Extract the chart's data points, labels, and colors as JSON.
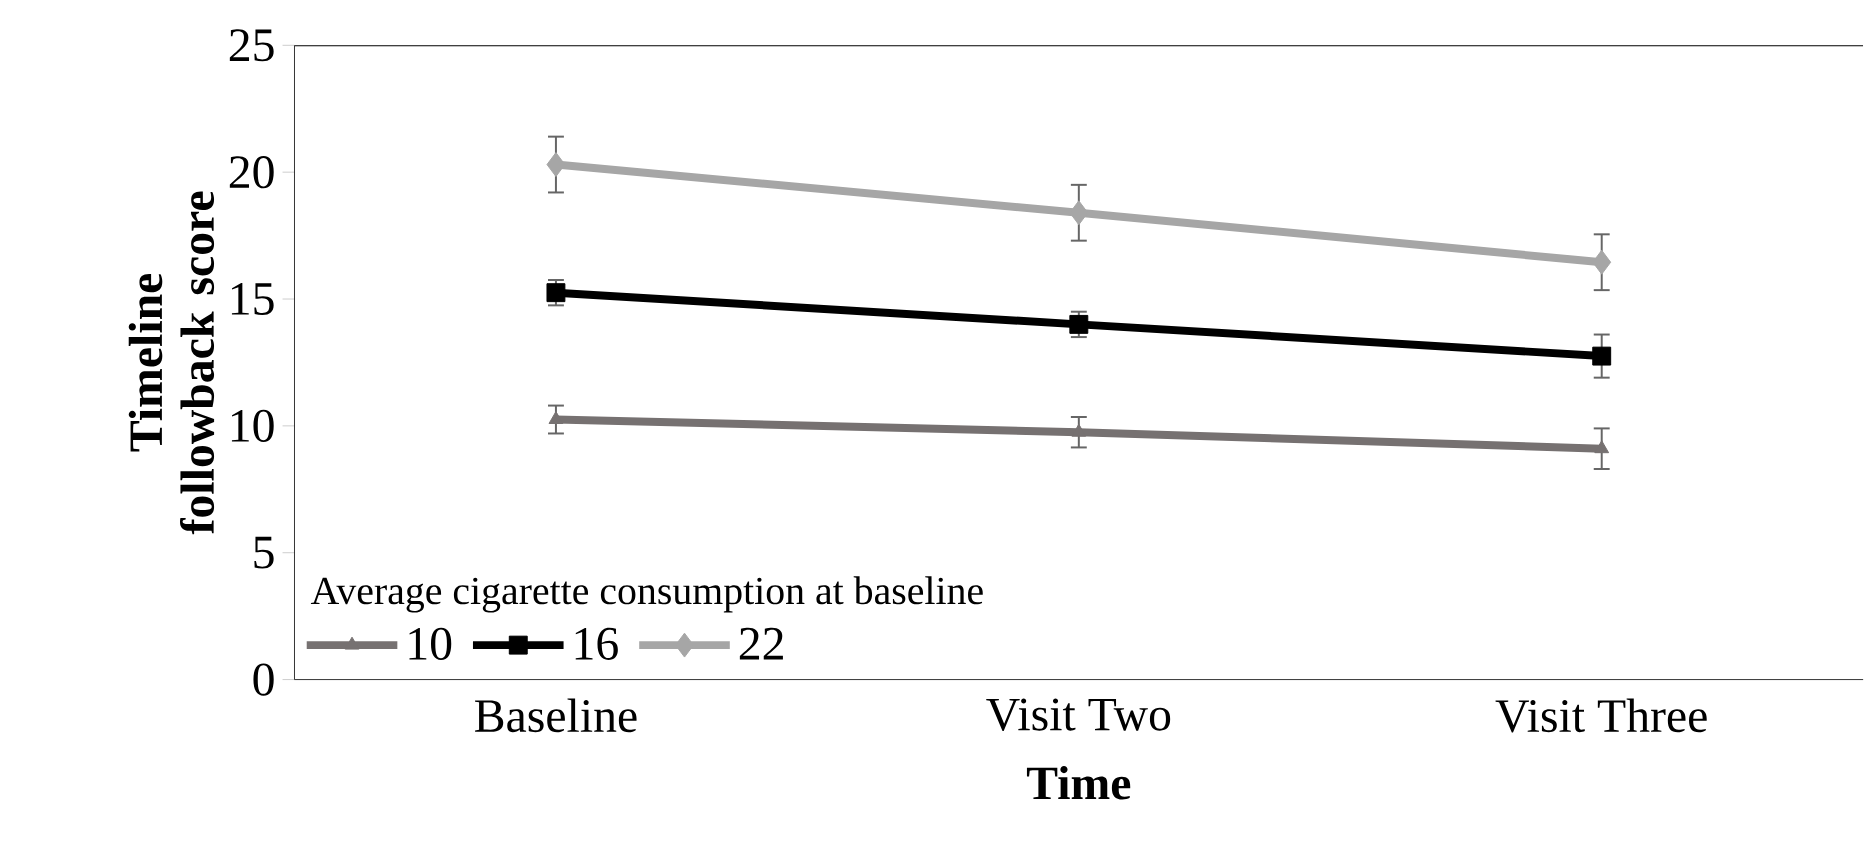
{
  "chart_data": {
    "type": "line",
    "xlabel": "Time",
    "ylabel": "Timeline followback score",
    "legend_title": "Average cigarette consumption at baseline",
    "categories": [
      "Baseline",
      "Visit Two",
      "Visit Three"
    ],
    "series": [
      {
        "name": "10",
        "color": "#767171",
        "marker": "triangle",
        "values": [
          10.25,
          9.75,
          9.1
        ],
        "errors": [
          0.55,
          0.6,
          0.8
        ]
      },
      {
        "name": "16",
        "color": "#000000",
        "marker": "square",
        "values": [
          15.25,
          14.0,
          12.75
        ],
        "errors": [
          0.5,
          0.5,
          0.85
        ]
      },
      {
        "name": "22",
        "color": "#a6a6a6",
        "marker": "diamond",
        "values": [
          20.3,
          18.4,
          16.45
        ],
        "errors": [
          1.1,
          1.1,
          1.1
        ]
      }
    ],
    "ylim": [
      0,
      25
    ],
    "yticks": [
      0,
      5,
      10,
      15,
      20,
      25
    ],
    "grid": false,
    "legend": "bottom left"
  }
}
